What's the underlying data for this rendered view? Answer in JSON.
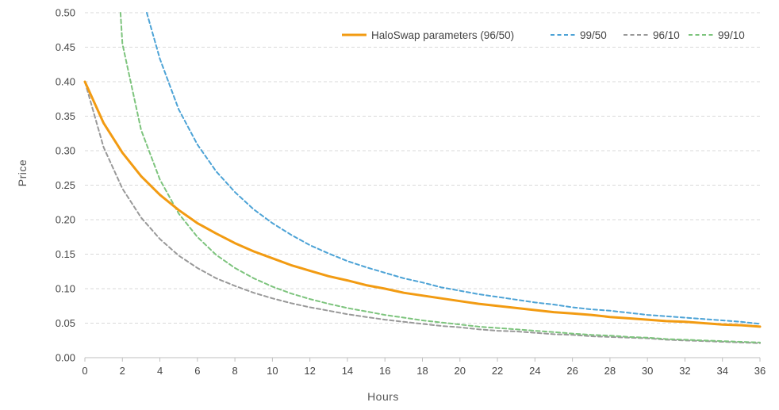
{
  "chart_data": {
    "type": "line",
    "title": "",
    "xlabel": "Hours",
    "ylabel": "Price",
    "xlim": [
      0,
      36
    ],
    "ylim": [
      0,
      0.5
    ],
    "x_ticks": [
      "0",
      "2",
      "4",
      "6",
      "8",
      "10",
      "12",
      "14",
      "16",
      "18",
      "20",
      "22",
      "24",
      "26",
      "28",
      "30",
      "32",
      "34",
      "36"
    ],
    "y_ticks": [
      "0.00",
      "0.05",
      "0.10",
      "0.15",
      "0.20",
      "0.25",
      "0.30",
      "0.35",
      "0.40",
      "0.45",
      "0.50"
    ],
    "grid": "horizontal dashed",
    "legend_position": "top-right",
    "series": [
      {
        "name": "HaloSwap parameters (96/50)",
        "color": "#f29b12",
        "style": "solid",
        "x": [
          0,
          1,
          2,
          3,
          4,
          5,
          6,
          7,
          8,
          9,
          10,
          11,
          12,
          13,
          14,
          15,
          16,
          17,
          18,
          19,
          20,
          21,
          22,
          23,
          24,
          25,
          26,
          27,
          28,
          29,
          30,
          31,
          32,
          33,
          34,
          35,
          36
        ],
        "values": [
          0.4,
          0.34,
          0.297,
          0.263,
          0.236,
          0.214,
          0.195,
          0.18,
          0.166,
          0.154,
          0.144,
          0.134,
          0.126,
          0.118,
          0.112,
          0.105,
          0.1,
          0.094,
          0.09,
          0.086,
          0.082,
          0.078,
          0.075,
          0.072,
          0.069,
          0.066,
          0.064,
          0.062,
          0.059,
          0.057,
          0.055,
          0.053,
          0.052,
          0.05,
          0.048,
          0.047,
          0.045
        ]
      },
      {
        "name": "99/50",
        "color": "#4da3d6",
        "style": "dashed",
        "x": [
          3.3,
          4,
          5,
          6,
          7,
          8,
          9,
          10,
          11,
          12,
          13,
          14,
          15,
          16,
          17,
          18,
          19,
          20,
          21,
          22,
          23,
          24,
          25,
          26,
          27,
          28,
          29,
          30,
          31,
          32,
          33,
          34,
          35,
          36
        ],
        "values": [
          0.5,
          0.433,
          0.36,
          0.309,
          0.27,
          0.24,
          0.215,
          0.195,
          0.178,
          0.163,
          0.151,
          0.14,
          0.131,
          0.123,
          0.115,
          0.109,
          0.102,
          0.097,
          0.092,
          0.088,
          0.084,
          0.08,
          0.077,
          0.073,
          0.07,
          0.068,
          0.065,
          0.062,
          0.06,
          0.058,
          0.056,
          0.054,
          0.052,
          0.049
        ]
      },
      {
        "name": "96/10",
        "color": "#999999",
        "style": "dashed",
        "x": [
          0,
          1,
          2,
          3,
          4,
          5,
          6,
          7,
          8,
          9,
          10,
          11,
          12,
          13,
          14,
          15,
          16,
          17,
          18,
          19,
          20,
          21,
          22,
          23,
          24,
          25,
          26,
          27,
          28,
          29,
          30,
          31,
          32,
          33,
          34,
          35,
          36
        ],
        "values": [
          0.4,
          0.305,
          0.245,
          0.203,
          0.172,
          0.148,
          0.13,
          0.115,
          0.104,
          0.094,
          0.086,
          0.079,
          0.073,
          0.068,
          0.063,
          0.059,
          0.055,
          0.052,
          0.049,
          0.046,
          0.044,
          0.041,
          0.039,
          0.038,
          0.036,
          0.034,
          0.033,
          0.031,
          0.03,
          0.029,
          0.028,
          0.026,
          0.025,
          0.024,
          0.023,
          0.022,
          0.021
        ]
      },
      {
        "name": "99/10",
        "color": "#7dc47d",
        "style": "dashed",
        "x": [
          1.9,
          2,
          3,
          4,
          5,
          6,
          7,
          8,
          9,
          10,
          11,
          12,
          13,
          14,
          15,
          16,
          17,
          18,
          19,
          20,
          21,
          22,
          23,
          24,
          25,
          26,
          27,
          28,
          29,
          30,
          31,
          32,
          33,
          34,
          35,
          36
        ],
        "values": [
          0.5,
          0.455,
          0.33,
          0.258,
          0.209,
          0.175,
          0.149,
          0.13,
          0.115,
          0.103,
          0.093,
          0.085,
          0.078,
          0.072,
          0.067,
          0.062,
          0.058,
          0.054,
          0.051,
          0.048,
          0.045,
          0.043,
          0.041,
          0.039,
          0.037,
          0.035,
          0.033,
          0.032,
          0.03,
          0.029,
          0.027,
          0.026,
          0.025,
          0.024,
          0.023,
          0.022
        ]
      }
    ]
  }
}
